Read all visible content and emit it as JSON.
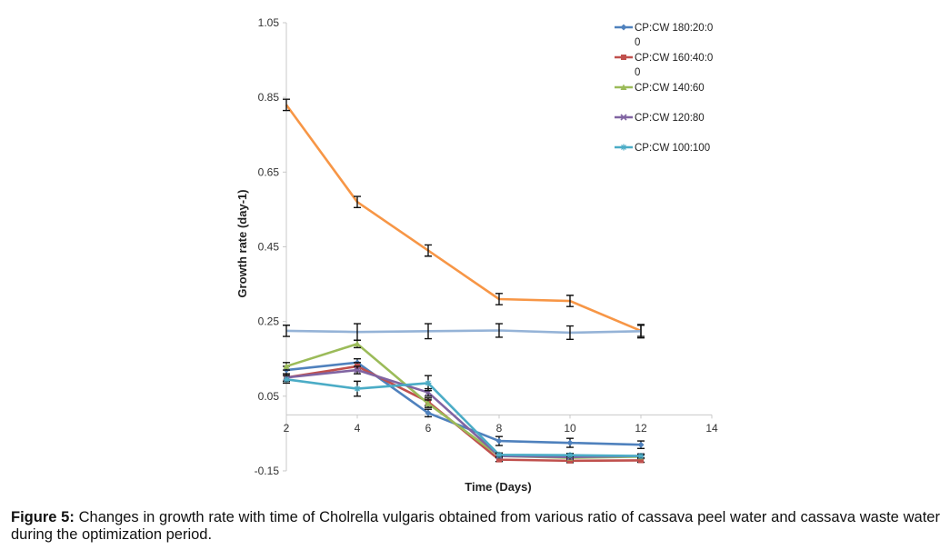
{
  "chart_data": {
    "type": "line",
    "title": "",
    "xlabel": "Time (Days)",
    "ylabel": "Growth rate (day-1)",
    "xlim": [
      2,
      14
    ],
    "ylim": [
      -0.15,
      1.05
    ],
    "xticks": [
      "2",
      "4",
      "6",
      "8",
      "10",
      "12",
      "14"
    ],
    "yticks": [
      "1.05",
      "0.85",
      "0.65",
      "0.45",
      "0.25",
      "0.05",
      "-0.15"
    ],
    "x": [
      2,
      4,
      6,
      8,
      10,
      12
    ],
    "series": [
      {
        "name": "CP:CW 180:20:0\n0",
        "color": "#4f81bd",
        "marker": "diamond",
        "values": [
          0.12,
          0.14,
          0.005,
          -0.07,
          -0.075,
          -0.08
        ],
        "errors": [
          0.01,
          0.01,
          0.01,
          0.012,
          0.012,
          0.01
        ]
      },
      {
        "name": "CP:CW 160:40:0\n0",
        "color": "#c0504d",
        "marker": "square",
        "values": [
          0.1,
          0.13,
          0.035,
          -0.12,
          -0.123,
          -0.122
        ],
        "errors": [
          0.01,
          0.01,
          0.01,
          0.005,
          0.005,
          0.005
        ]
      },
      {
        "name": "CP:CW 140:60",
        "color": "#9bbb59",
        "marker": "triangle",
        "values": [
          0.13,
          0.19,
          0.03,
          -0.11,
          -0.115,
          -0.112
        ],
        "errors": [
          0.01,
          0.01,
          0.01,
          0.005,
          0.005,
          0.005
        ]
      },
      {
        "name": "CP:CW 120:80",
        "color": "#8064a2",
        "marker": "x",
        "values": [
          0.1,
          0.12,
          0.06,
          -0.11,
          -0.113,
          -0.11
        ],
        "errors": [
          0.01,
          0.01,
          0.01,
          0.005,
          0.005,
          0.005
        ]
      },
      {
        "name": "CP:CW 100:100",
        "color": "#4bacc6",
        "marker": "star",
        "values": [
          0.095,
          0.07,
          0.085,
          -0.107,
          -0.108,
          -0.11
        ],
        "errors": [
          0.01,
          0.02,
          0.02,
          0.005,
          0.005,
          0.005
        ]
      },
      {
        "name": "",
        "color": "#f79646",
        "marker": "none",
        "values": [
          0.83,
          0.57,
          0.44,
          0.31,
          0.305,
          0.225
        ],
        "errors": [
          0.015,
          0.015,
          0.015,
          0.015,
          0.015,
          0.015
        ]
      },
      {
        "name": "",
        "color": "#95b3d7",
        "marker": "none",
        "values": [
          0.225,
          0.222,
          0.224,
          0.226,
          0.22,
          0.224
        ],
        "errors": [
          0.015,
          0.022,
          0.02,
          0.018,
          0.018,
          0.018
        ]
      }
    ]
  },
  "caption": {
    "label": "Figure 5:",
    "text": " Changes in growth rate with time of Cholrella vulgaris obtained from various ratio of cassava peel water and cassava waste water during the optimization period."
  }
}
